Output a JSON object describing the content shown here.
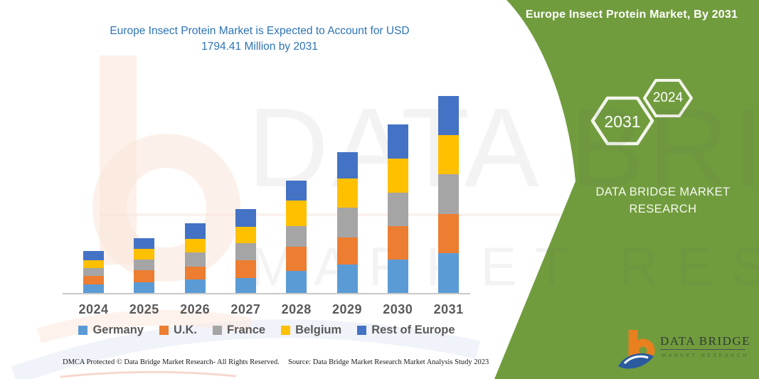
{
  "title": {
    "line1": "Europe Insect Protein Market is Expected to Account for USD",
    "line2": "1794.41 Million by 2031"
  },
  "green_panel": {
    "header": "Europe Insect Protein Market, By 2031",
    "hexagons": [
      {
        "label": "2031"
      },
      {
        "label": "2024"
      }
    ],
    "brand_line1": "DATA BRIDGE MARKET",
    "brand_line2": "RESEARCH",
    "logo_name": "DATA BRIDGE",
    "logo_tagline": "MARKET RESEARCH"
  },
  "watermark": {
    "line1": "DATA BRIDGE",
    "line2": "MARKET RESEARCH"
  },
  "footer": {
    "dmca": "DMCA Protected © Data Bridge Market Research-  All Rights Reserved.",
    "source": "Source: Data Bridge Market Research  Market Analysis Study 2023"
  },
  "chart_data": {
    "type": "bar",
    "stacked": true,
    "title": "Europe Insect Protein Market is Expected to Account for USD 1794.41 Million by 2031",
    "unit": "USD Million",
    "categories": [
      "2024",
      "2025",
      "2026",
      "2027",
      "2028",
      "2029",
      "2030",
      "2031"
    ],
    "series": [
      {
        "name": "Germany",
        "color": "#5B9BD5",
        "values": [
          78,
          97,
          123,
          138,
          201,
          259,
          302,
          360
        ]
      },
      {
        "name": "U.K.",
        "color": "#ED7D31",
        "values": [
          75,
          108,
          119,
          162,
          220,
          248,
          307,
          361
        ]
      },
      {
        "name": "France",
        "color": "#A5A5A5",
        "values": [
          72,
          102,
          125,
          157,
          190,
          270,
          308,
          360
        ]
      },
      {
        "name": "Belgium",
        "color": "#FFC000",
        "values": [
          71,
          97,
          128,
          145,
          231,
          266,
          307,
          355
        ]
      },
      {
        "name": "Rest of Europe",
        "color": "#4472C4",
        "values": [
          84,
          95,
          141,
          164,
          183,
          237,
          313,
          358.41
        ]
      }
    ],
    "totals": [
      380,
      499,
      636,
      766,
      1025,
      1280,
      1537,
      1794.41
    ],
    "ylim": [
      0,
      1900
    ],
    "grid": false,
    "value_axis_visible": false,
    "legend_position": "bottom"
  },
  "colors": {
    "panel_green": "#719C3E",
    "title_blue": "#2E74B5",
    "axis_text": "#595959",
    "logo_orange": "#E8801F",
    "logo_blue": "#2B5B9E"
  }
}
